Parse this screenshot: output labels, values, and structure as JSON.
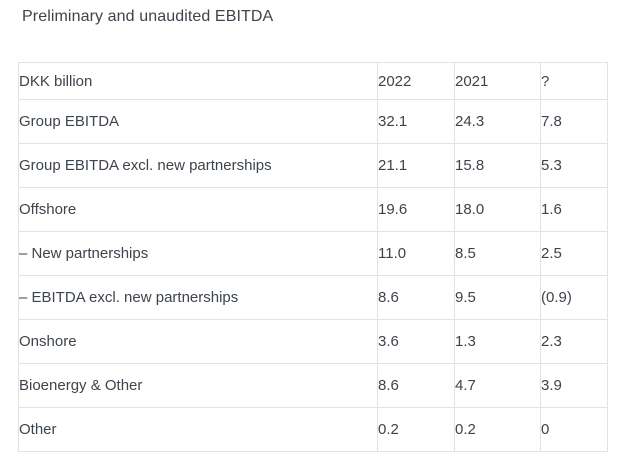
{
  "page": {
    "title": "Preliminary and unaudited EBITDA",
    "background_color": "#ffffff",
    "text_color": "#3d444b",
    "border_color": "#e2e2e2"
  },
  "table": {
    "unit_header": "DKK billion",
    "columns": [
      {
        "key": "label",
        "label": "DKK billion"
      },
      {
        "key": "y2022",
        "label": "2022"
      },
      {
        "key": "y2021",
        "label": "2021"
      },
      {
        "key": "delta",
        "label": "?"
      }
    ],
    "rows": [
      {
        "label": "Group EBITDA",
        "indent": 0,
        "values": [
          "32.1",
          "24.3",
          "7.8"
        ]
      },
      {
        "label": "Group EBITDA excl. new partnerships",
        "indent": 0,
        "values": [
          "21.1",
          "15.8",
          "5.3"
        ]
      },
      {
        "label": "Offshore",
        "indent": 1,
        "values": [
          "19.6",
          "18.0",
          "1.6"
        ]
      },
      {
        "label": "– New partnerships",
        "indent": 2,
        "values": [
          "11.0",
          "8.5",
          "2.5"
        ]
      },
      {
        "label": "– EBITDA excl. new partnerships",
        "indent": 2,
        "values": [
          "8.6",
          "9.5",
          "(0.9)"
        ]
      },
      {
        "label": "Onshore",
        "indent": 1,
        "values": [
          "3.6",
          "1.3",
          "2.3"
        ]
      },
      {
        "label": "Bioenergy & Other",
        "indent": 1,
        "values": [
          "8.6",
          "4.7",
          "3.9"
        ]
      },
      {
        "label": "Other",
        "indent": 1,
        "values": [
          "0.2",
          "0.2",
          "0"
        ]
      }
    ]
  }
}
